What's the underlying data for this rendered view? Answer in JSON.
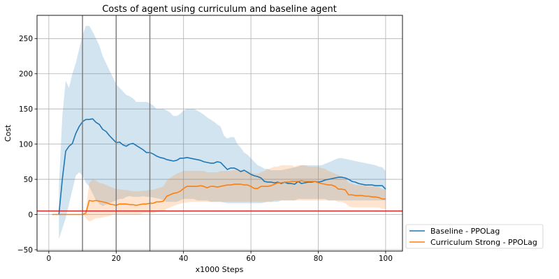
{
  "chart_data": {
    "type": "line",
    "title": "Costs of agent using curriculum and baseline agent",
    "xlabel": "x1000 Steps",
    "ylabel": "Cost",
    "xlim": [
      -3.5,
      105
    ],
    "ylim": [
      -52,
      283
    ],
    "xticks": [
      0,
      20,
      40,
      60,
      80,
      100
    ],
    "yticks": [
      -50,
      0,
      50,
      100,
      150,
      200,
      250
    ],
    "grid": true,
    "legend_position": "outside-bottom-right",
    "hline": {
      "y": 5,
      "color": "#d62728"
    },
    "vlines": [
      10,
      20,
      30
    ],
    "vline_color": "#7f7f7f",
    "series": [
      {
        "name": "Baseline - PPOLag",
        "color": "#1f77b4",
        "x": [
          3,
          4,
          5,
          6,
          7,
          8,
          9,
          10,
          11,
          12,
          13,
          14,
          15,
          16,
          17,
          18,
          19,
          20,
          21,
          22,
          23,
          24,
          25,
          26,
          27,
          28,
          29,
          30,
          31,
          32,
          33,
          34,
          35,
          36,
          37,
          38,
          39,
          40,
          41,
          42,
          43,
          44,
          45,
          46,
          47,
          48,
          49,
          50,
          51,
          52,
          53,
          54,
          55,
          56,
          57,
          58,
          59,
          60,
          61,
          62,
          63,
          64,
          65,
          66,
          67,
          68,
          69,
          70,
          71,
          72,
          73,
          74,
          75,
          76,
          77,
          78,
          79,
          80,
          81,
          82,
          83,
          84,
          85,
          86,
          87,
          88,
          89,
          90,
          91,
          92,
          93,
          94,
          95,
          96,
          97,
          98,
          99,
          100
        ],
        "y": [
          0,
          50,
          90,
          97,
          101,
          115,
          125,
          132,
          135,
          135,
          136,
          131,
          128,
          121,
          118,
          112,
          107,
          102,
          103,
          99,
          97,
          100,
          101,
          98,
          95,
          92,
          88,
          88,
          86,
          83,
          81,
          80,
          78,
          77,
          76,
          77,
          80,
          80,
          81,
          80,
          79,
          78,
          77,
          75,
          74,
          73,
          73,
          75,
          74,
          69,
          64,
          66,
          66,
          64,
          61,
          63,
          60,
          57,
          55,
          54,
          52,
          47,
          46,
          46,
          45,
          46,
          44,
          46,
          44,
          44,
          43,
          47,
          44,
          45,
          46,
          46,
          47,
          46,
          47,
          49,
          50,
          51,
          52,
          53,
          53,
          52,
          50,
          47,
          46,
          44,
          43,
          42,
          42,
          42,
          41,
          41,
          41,
          36
        ],
        "lower": [
          -35,
          -20,
          -5,
          15,
          35,
          55,
          60,
          55,
          45,
          40,
          30,
          20,
          15,
          12,
          14,
          16,
          18,
          20,
          22,
          22,
          25,
          26,
          25,
          25,
          25,
          26,
          25,
          25,
          24,
          23,
          22,
          20,
          18,
          18,
          18,
          18,
          20,
          22,
          22,
          22,
          22,
          20,
          20,
          20,
          20,
          18,
          18,
          18,
          18,
          17,
          16,
          16,
          16,
          16,
          16,
          16,
          16,
          16,
          16,
          16,
          16,
          17,
          18,
          18,
          18,
          18,
          20,
          20,
          20,
          20,
          20,
          22,
          22,
          22,
          22,
          22,
          22,
          22,
          22,
          22,
          20,
          20,
          20,
          20,
          20,
          20,
          20,
          20,
          20,
          20,
          20,
          20,
          20,
          20,
          20,
          20,
          20,
          20
        ],
        "upper": [
          40,
          140,
          190,
          180,
          200,
          215,
          235,
          255,
          268,
          268,
          260,
          250,
          240,
          225,
          215,
          205,
          195,
          185,
          180,
          175,
          170,
          168,
          165,
          160,
          160,
          160,
          160,
          158,
          155,
          150,
          150,
          150,
          148,
          145,
          140,
          140,
          143,
          148,
          150,
          150,
          150,
          148,
          145,
          142,
          138,
          135,
          132,
          128,
          125,
          112,
          108,
          110,
          110,
          100,
          95,
          88,
          85,
          80,
          75,
          70,
          68,
          65,
          65,
          63,
          63,
          63,
          63,
          64,
          65,
          66,
          67,
          68,
          70,
          70,
          70,
          70,
          70,
          70,
          70,
          72,
          74,
          76,
          78,
          80,
          80,
          79,
          78,
          77,
          76,
          75,
          74,
          73,
          72,
          71,
          70,
          68,
          67,
          62
        ]
      },
      {
        "name": "Curriculum Strong - PPOLag",
        "color": "#ff7f0e",
        "x": [
          1,
          2,
          3,
          4,
          5,
          6,
          7,
          8,
          9,
          10,
          11,
          12,
          13,
          14,
          15,
          16,
          17,
          18,
          19,
          20,
          21,
          22,
          23,
          24,
          25,
          26,
          27,
          28,
          29,
          30,
          31,
          32,
          33,
          34,
          35,
          36,
          37,
          38,
          39,
          40,
          41,
          42,
          43,
          44,
          45,
          46,
          47,
          48,
          49,
          50,
          51,
          52,
          53,
          54,
          55,
          56,
          57,
          58,
          59,
          60,
          61,
          62,
          63,
          64,
          65,
          66,
          67,
          68,
          69,
          70,
          71,
          72,
          73,
          74,
          75,
          76,
          77,
          78,
          79,
          80,
          81,
          82,
          83,
          84,
          85,
          86,
          87,
          88,
          89,
          90,
          91,
          92,
          93,
          94,
          95,
          96,
          97,
          98,
          99,
          100
        ],
        "y": [
          0,
          0,
          0,
          0,
          0,
          0,
          0,
          0,
          0,
          0,
          2,
          20,
          19,
          20,
          19,
          18,
          17,
          15,
          14,
          13,
          15,
          15,
          15,
          14,
          14,
          13,
          14,
          15,
          15,
          16,
          16,
          18,
          18,
          19,
          26,
          28,
          30,
          31,
          33,
          37,
          40,
          40,
          40,
          40,
          41,
          40,
          38,
          40,
          40,
          39,
          40,
          41,
          42,
          42,
          43,
          43,
          43,
          42,
          42,
          40,
          37,
          37,
          40,
          40,
          40,
          41,
          43,
          45,
          45,
          46,
          46,
          47,
          47,
          47,
          48,
          47,
          47,
          47,
          47,
          45,
          44,
          43,
          42,
          42,
          40,
          36,
          36,
          35,
          28,
          28,
          27,
          27,
          27,
          26,
          26,
          25,
          25,
          24,
          22,
          22
        ],
        "lower": [
          0,
          0,
          0,
          0,
          0,
          0,
          0,
          0,
          0,
          0,
          -5,
          -10,
          -8,
          -5,
          -5,
          -4,
          -3,
          -2,
          0,
          0,
          0,
          0,
          0,
          0,
          0,
          0,
          0,
          2,
          2,
          2,
          2,
          4,
          4,
          4,
          8,
          10,
          12,
          14,
          15,
          17,
          17,
          18,
          18,
          18,
          18,
          18,
          18,
          18,
          18,
          18,
          18,
          18,
          18,
          18,
          18,
          18,
          18,
          18,
          18,
          18,
          18,
          18,
          18,
          18,
          18,
          18,
          20,
          20,
          20,
          20,
          20,
          20,
          20,
          20,
          20,
          20,
          20,
          20,
          20,
          20,
          20,
          20,
          20,
          20,
          20,
          18,
          18,
          16,
          12,
          10,
          10,
          10,
          10,
          10,
          10,
          10,
          10,
          10,
          8,
          8
        ],
        "upper": [
          0,
          0,
          0,
          0,
          0,
          0,
          0,
          0,
          0,
          0,
          8,
          45,
          50,
          48,
          45,
          44,
          42,
          40,
          38,
          36,
          36,
          35,
          35,
          34,
          33,
          33,
          33,
          34,
          34,
          35,
          35,
          37,
          38,
          40,
          48,
          52,
          55,
          58,
          60,
          62,
          62,
          62,
          62,
          62,
          62,
          62,
          60,
          60,
          60,
          60,
          62,
          62,
          62,
          62,
          63,
          63,
          63,
          62,
          62,
          60,
          58,
          58,
          60,
          62,
          64,
          66,
          68,
          68,
          70,
          70,
          70,
          70,
          68,
          70,
          70,
          70,
          68,
          68,
          68,
          68,
          66,
          65,
          62,
          60,
          58,
          56,
          54,
          52,
          45,
          44,
          42,
          42,
          42,
          41,
          40,
          40,
          40,
          39,
          36,
          36
        ]
      }
    ]
  }
}
